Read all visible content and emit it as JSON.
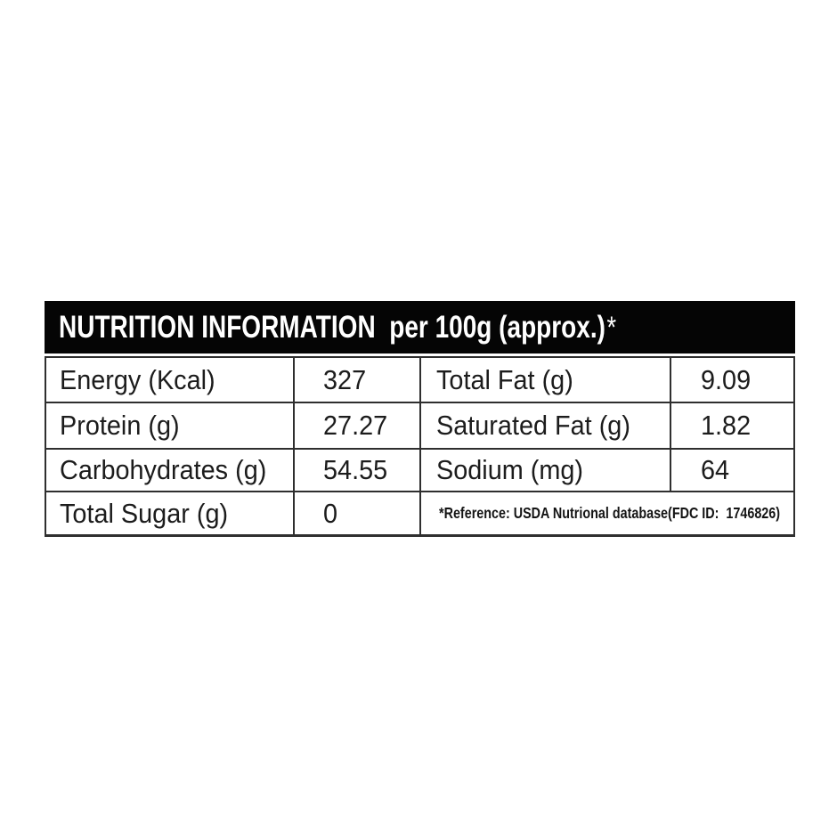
{
  "page": {
    "background": "#ffffff"
  },
  "table": {
    "header": {
      "title": "NUTRITION INFORMATION  per 100g (approx.)",
      "asterisk": "*",
      "bg_color": "#050505",
      "text_color": "#ffffff"
    },
    "border_color": "#2f2f2f",
    "text_color": "#1c1c1c",
    "rows": [
      {
        "left_label": "Energy (Kcal)",
        "left_value": "327",
        "right_label": "Total Fat (g)",
        "right_value": "9.09"
      },
      {
        "left_label": "Protein (g)",
        "left_value": "27.27",
        "right_label": "Saturated Fat (g)",
        "right_value": "1.82"
      },
      {
        "left_label": "Carbohydrates (g)",
        "left_value": "54.55",
        "right_label": "Sodium (mg)",
        "right_value": "64"
      },
      {
        "left_label": "Total Sugar (g)",
        "left_value": "0",
        "note": "*Reference: USDA Nutrional database(FDC ID:  1746826)"
      }
    ]
  }
}
